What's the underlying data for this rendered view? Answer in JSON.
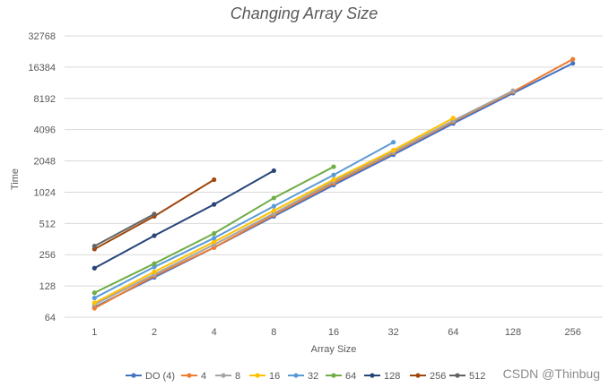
{
  "chart_data": {
    "type": "line",
    "title": "Changing Array Size",
    "xlabel": "Array Size",
    "ylabel": "Time",
    "x_scale": "categorical",
    "y_scale": "log2",
    "categories": [
      "1",
      "2",
      "4",
      "8",
      "16",
      "32",
      "64",
      "128",
      "256"
    ],
    "y_ticks": [
      64,
      128,
      256,
      512,
      1024,
      2048,
      4096,
      8192,
      16384,
      32768
    ],
    "ylim": [
      64,
      32768
    ],
    "grid": true,
    "legend_position": "bottom",
    "series": [
      {
        "name": "DO (4)",
        "color": "#4472c4",
        "values": [
          80,
          155,
          300,
          600,
          1200,
          2350,
          4700,
          9200,
          17800
        ]
      },
      {
        "name": "4",
        "color": "#ed7d31",
        "values": [
          78,
          160,
          300,
          620,
          1250,
          2450,
          4900,
          9500,
          19500
        ]
      },
      {
        "name": "8",
        "color": "#a5a5a5",
        "values": [
          85,
          165,
          320,
          640,
          1300,
          2500,
          5000,
          9700,
          null
        ]
      },
      {
        "name": "16",
        "color": "#ffc000",
        "values": [
          88,
          175,
          340,
          680,
          1350,
          2600,
          5300,
          null,
          null
        ]
      },
      {
        "name": "32",
        "color": "#5b9bd5",
        "values": [
          98,
          195,
          370,
          750,
          1500,
          3100,
          null,
          null,
          null
        ]
      },
      {
        "name": "64",
        "color": "#70ad47",
        "values": [
          110,
          210,
          410,
          900,
          1800,
          null,
          null,
          null,
          null
        ]
      },
      {
        "name": "128",
        "color": "#264478",
        "values": [
          190,
          390,
          780,
          1650,
          null,
          null,
          null,
          null,
          null
        ]
      },
      {
        "name": "256",
        "color": "#9e480e",
        "values": [
          290,
          600,
          1350,
          null,
          null,
          null,
          null,
          null,
          null
        ]
      },
      {
        "name": "512",
        "color": "#636363",
        "values": [
          310,
          630,
          null,
          null,
          null,
          null,
          null,
          null,
          null
        ]
      }
    ]
  },
  "watermark": "CSDN @Thinbug"
}
